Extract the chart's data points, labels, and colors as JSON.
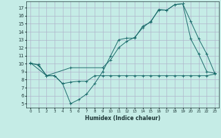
{
  "xlabel": "Humidex (Indice chaleur)",
  "background_color": "#c5ece6",
  "grid_color": "#b0b4cc",
  "line_color": "#1a6b6b",
  "xlim": [
    -0.5,
    23.5
  ],
  "ylim": [
    4.5,
    17.8
  ],
  "yticks": [
    5,
    6,
    7,
    8,
    9,
    10,
    11,
    12,
    13,
    14,
    15,
    16,
    17
  ],
  "xticks": [
    0,
    1,
    2,
    3,
    4,
    5,
    6,
    7,
    8,
    9,
    10,
    11,
    12,
    13,
    14,
    15,
    16,
    17,
    18,
    19,
    20,
    21,
    22,
    23
  ],
  "line1_x": [
    0,
    1,
    2,
    3,
    4,
    5,
    6,
    7,
    8,
    9,
    10,
    11,
    12,
    13,
    14,
    15,
    16,
    17,
    18,
    19,
    20,
    21,
    22,
    23
  ],
  "line1_y": [
    10.0,
    9.9,
    8.5,
    8.5,
    7.5,
    7.7,
    7.8,
    7.8,
    8.5,
    8.5,
    8.5,
    8.5,
    8.5,
    8.5,
    8.5,
    8.5,
    8.5,
    8.5,
    8.5,
    8.5,
    8.5,
    8.5,
    8.5,
    8.7
  ],
  "line2_x": [
    0,
    1,
    2,
    3,
    4,
    5,
    6,
    7,
    8,
    9,
    10,
    11,
    12,
    13,
    14,
    15,
    16,
    17,
    18,
    19,
    20,
    21,
    22,
    23
  ],
  "line2_y": [
    10.1,
    9.8,
    8.5,
    8.5,
    7.5,
    5.0,
    5.5,
    6.2,
    7.5,
    9.0,
    11.0,
    13.0,
    13.2,
    13.2,
    14.7,
    15.2,
    16.8,
    16.7,
    17.4,
    17.5,
    15.3,
    13.1,
    11.2,
    8.8
  ],
  "line3_x": [
    0,
    2,
    5,
    9,
    10,
    11,
    12,
    13,
    14,
    15,
    16,
    17,
    18,
    19,
    20,
    21,
    22,
    23
  ],
  "line3_y": [
    10.1,
    8.5,
    9.5,
    9.5,
    10.5,
    12.0,
    12.8,
    13.3,
    14.5,
    15.3,
    16.7,
    16.7,
    17.4,
    17.5,
    13.1,
    11.2,
    9.0,
    8.8
  ]
}
